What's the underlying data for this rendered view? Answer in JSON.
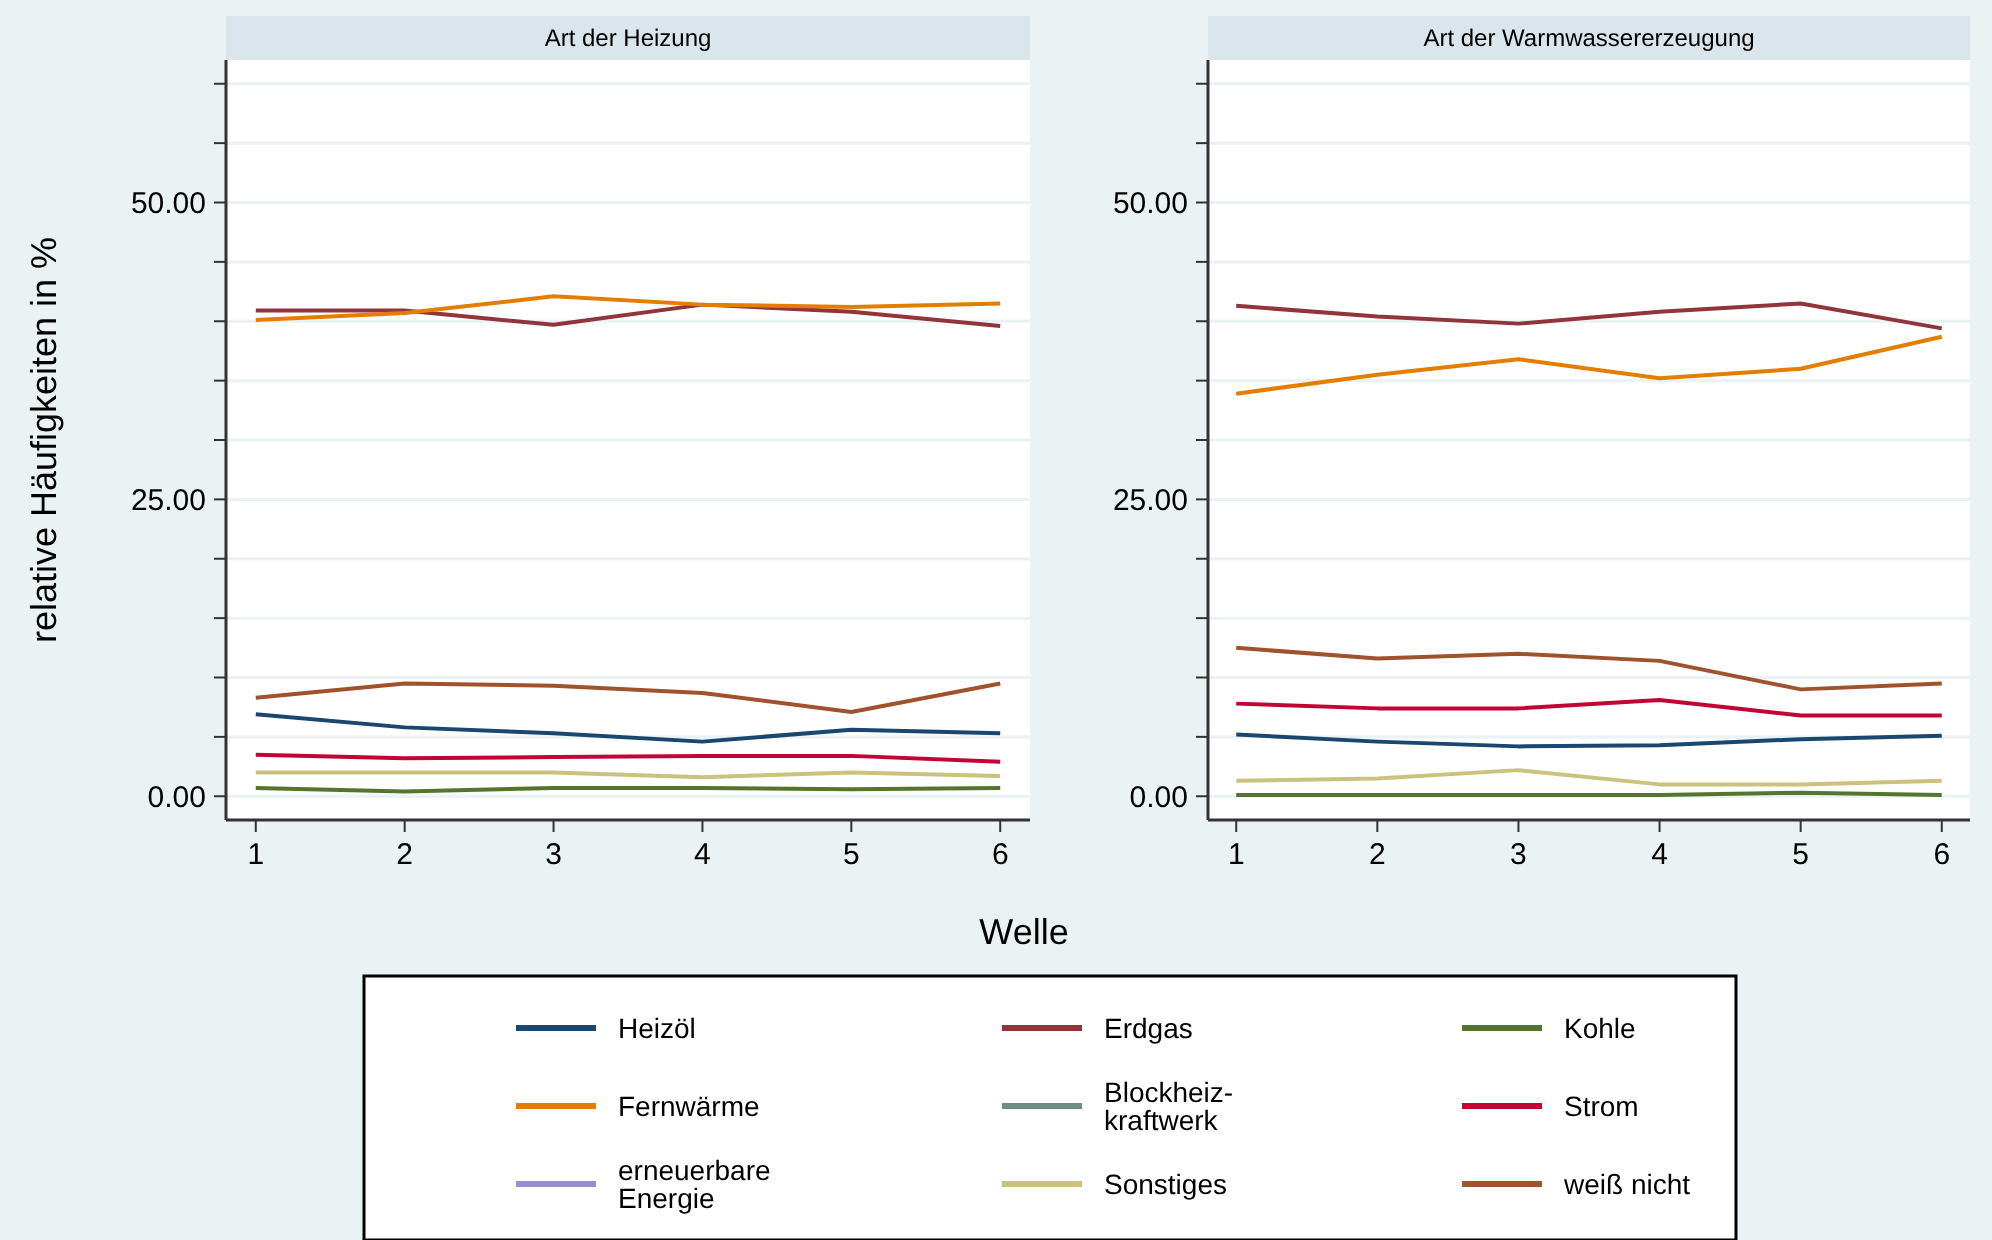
{
  "chart_data": [
    {
      "type": "line",
      "title": "Art der Heizung",
      "ylabel": "relative Häufigkeiten in %",
      "xlabel": "Welle",
      "x": [
        1,
        2,
        3,
        4,
        5,
        6
      ],
      "xlim": [
        0.8,
        6.2
      ],
      "xticks": [
        1,
        2,
        3,
        4,
        5,
        6
      ],
      "ylim": [
        -2,
        62
      ],
      "yticks": [
        {
          "value": 0,
          "label": "0.00"
        },
        {
          "value": 5,
          "label": null
        },
        {
          "value": 10,
          "label": null
        },
        {
          "value": 15,
          "label": null
        },
        {
          "value": 20,
          "label": null
        },
        {
          "value": 25,
          "label": "25.00"
        },
        {
          "value": 30,
          "label": null
        },
        {
          "value": 35,
          "label": null
        },
        {
          "value": 40,
          "label": null
        },
        {
          "value": 45,
          "label": null
        },
        {
          "value": 50,
          "label": "50.00"
        },
        {
          "value": 55,
          "label": null
        },
        {
          "value": 60,
          "label": null
        }
      ],
      "grid": "y",
      "legend": "bottom",
      "marker": "none",
      "line_style": "solid",
      "series": [
        {
          "name": "Heizöl",
          "color": "#1a476f",
          "values": [
            6.9,
            5.8,
            5.3,
            4.6,
            5.6,
            5.3
          ]
        },
        {
          "name": "Erdgas",
          "color": "#90353b",
          "values": [
            40.9,
            40.9,
            39.7,
            41.4,
            40.8,
            39.6
          ]
        },
        {
          "name": "Kohle",
          "color": "#55752f",
          "values": [
            0.7,
            0.4,
            0.7,
            0.7,
            0.6,
            0.7
          ]
        },
        {
          "name": "Fernwärme",
          "color": "#e37e00",
          "values": [
            40.1,
            40.7,
            42.1,
            41.4,
            41.2,
            41.5
          ]
        },
        {
          "name": "Blockheiz-kraftwerk",
          "color": "#6e8e84",
          "values": [
            null,
            null,
            null,
            null,
            null,
            null
          ]
        },
        {
          "name": "Strom",
          "color": "#c10534",
          "values": [
            3.5,
            3.2,
            3.3,
            3.4,
            3.4,
            2.9
          ]
        },
        {
          "name": "erneuerbare Energie",
          "color": "#938dd2",
          "values": [
            null,
            null,
            null,
            null,
            null,
            null
          ]
        },
        {
          "name": "Sonstiges",
          "color": "#cac27e",
          "values": [
            2.0,
            2.0,
            2.0,
            1.6,
            2.0,
            1.7
          ]
        },
        {
          "name": "weiß nicht",
          "color": "#a0522d",
          "values": [
            8.3,
            9.5,
            9.3,
            8.7,
            7.1,
            9.5
          ]
        }
      ]
    },
    {
      "type": "line",
      "title": "Art der Warmwassererzeugung",
      "x": [
        1,
        2,
        3,
        4,
        5,
        6
      ],
      "xlim": [
        0.8,
        6.2
      ],
      "xticks": [
        1,
        2,
        3,
        4,
        5,
        6
      ],
      "ylim": [
        -2,
        62
      ],
      "yticks": [
        {
          "value": 0,
          "label": "0.00"
        },
        {
          "value": 5,
          "label": null
        },
        {
          "value": 10,
          "label": null
        },
        {
          "value": 15,
          "label": null
        },
        {
          "value": 20,
          "label": null
        },
        {
          "value": 25,
          "label": "25.00"
        },
        {
          "value": 30,
          "label": null
        },
        {
          "value": 35,
          "label": null
        },
        {
          "value": 40,
          "label": null
        },
        {
          "value": 45,
          "label": null
        },
        {
          "value": 50,
          "label": "50.00"
        },
        {
          "value": 55,
          "label": null
        },
        {
          "value": 60,
          "label": null
        }
      ],
      "grid": "y",
      "marker": "none",
      "line_style": "solid",
      "series": [
        {
          "color": "#1a476f",
          "values": [
            5.2,
            4.6,
            4.2,
            4.3,
            4.8,
            5.1
          ]
        },
        {
          "color": "#90353b",
          "values": [
            41.3,
            40.4,
            39.8,
            40.8,
            41.5,
            39.4
          ]
        },
        {
          "color": "#55752f",
          "values": [
            0.1,
            0.1,
            0.1,
            0.1,
            0.3,
            0.1
          ]
        },
        {
          "color": "#e37e00",
          "values": [
            33.9,
            35.5,
            36.8,
            35.2,
            36.0,
            38.7
          ]
        },
        {
          "color": "#c10534",
          "values": [
            7.8,
            7.4,
            7.4,
            8.1,
            6.8,
            6.8
          ]
        },
        {
          "color": "#cac27e",
          "values": [
            1.3,
            1.5,
            2.2,
            1.0,
            1.0,
            1.3
          ]
        },
        {
          "color": "#a0522d",
          "values": [
            12.5,
            11.6,
            12.0,
            11.4,
            9.0,
            9.5
          ]
        }
      ]
    }
  ]
}
